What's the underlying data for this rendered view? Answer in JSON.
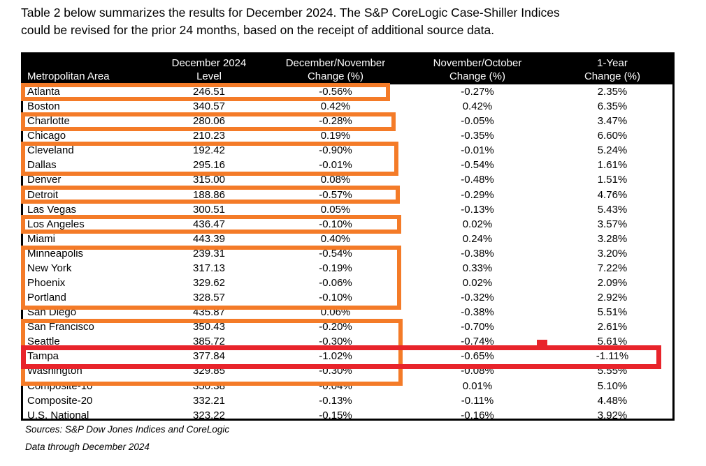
{
  "title": {
    "line1": "Table 2 below summarizes the results for December 2024. The S&P CoreLogic Case-Shiller Indices",
    "line2": "could be revised for the prior 24 months, based on the receipt of additional source data."
  },
  "table": {
    "columns": [
      {
        "line1": "",
        "line2": "Metropolitan Area"
      },
      {
        "line1": "December 2024",
        "line2": "Level"
      },
      {
        "line1": "December/November",
        "line2": "Change (%)"
      },
      {
        "line1": "November/October",
        "line2": "Change (%)"
      },
      {
        "line1": "1-Year",
        "line2": "Change (%)"
      }
    ],
    "rows": [
      {
        "area": "Atlanta",
        "level": "246.51",
        "dec_nov": "-0.56%",
        "nov_oct": "-0.27%",
        "one_year": "2.35%"
      },
      {
        "area": "Boston",
        "level": "340.57",
        "dec_nov": "0.42%",
        "nov_oct": "0.42%",
        "one_year": "6.35%"
      },
      {
        "area": "Charlotte",
        "level": "280.06",
        "dec_nov": "-0.28%",
        "nov_oct": "-0.05%",
        "one_year": "3.47%"
      },
      {
        "area": "Chicago",
        "level": "210.23",
        "dec_nov": "0.19%",
        "nov_oct": "-0.35%",
        "one_year": "6.60%"
      },
      {
        "area": "Cleveland",
        "level": "192.42",
        "dec_nov": "-0.90%",
        "nov_oct": "-0.01%",
        "one_year": "5.24%"
      },
      {
        "area": "Dallas",
        "level": "295.16",
        "dec_nov": "-0.01%",
        "nov_oct": "-0.54%",
        "one_year": "1.61%"
      },
      {
        "area": "Denver",
        "level": "315.00",
        "dec_nov": "0.08%",
        "nov_oct": "-0.48%",
        "one_year": "1.51%"
      },
      {
        "area": "Detroit",
        "level": "188.86",
        "dec_nov": "-0.57%",
        "nov_oct": "-0.29%",
        "one_year": "4.76%"
      },
      {
        "area": "Las Vegas",
        "level": "300.51",
        "dec_nov": "0.05%",
        "nov_oct": "-0.13%",
        "one_year": "5.43%"
      },
      {
        "area": "Los Angeles",
        "level": "436.47",
        "dec_nov": "-0.10%",
        "nov_oct": "0.02%",
        "one_year": "3.57%"
      },
      {
        "area": "Miami",
        "level": "443.39",
        "dec_nov": "0.40%",
        "nov_oct": "0.24%",
        "one_year": "3.28%"
      },
      {
        "area": "Minneapolis",
        "level": "239.31",
        "dec_nov": "-0.54%",
        "nov_oct": "-0.38%",
        "one_year": "3.20%"
      },
      {
        "area": "New York",
        "level": "317.13",
        "dec_nov": "-0.19%",
        "nov_oct": "0.33%",
        "one_year": "7.22%"
      },
      {
        "area": "Phoenix",
        "level": "329.62",
        "dec_nov": "-0.06%",
        "nov_oct": "0.02%",
        "one_year": "2.09%"
      },
      {
        "area": "Portland",
        "level": "328.57",
        "dec_nov": "-0.10%",
        "nov_oct": "-0.32%",
        "one_year": "2.92%"
      },
      {
        "area": "San Diego",
        "level": "435.87",
        "dec_nov": "0.06%",
        "nov_oct": "-0.38%",
        "one_year": "5.51%"
      },
      {
        "area": "San Francisco",
        "level": "350.43",
        "dec_nov": "-0.20%",
        "nov_oct": "-0.70%",
        "one_year": "2.61%"
      },
      {
        "area": "Seattle",
        "level": "385.72",
        "dec_nov": "-0.30%",
        "nov_oct": "-0.74%",
        "one_year": "5.61%"
      },
      {
        "area": "Tampa",
        "level": "377.84",
        "dec_nov": "-1.02%",
        "nov_oct": "-0.65%",
        "one_year": "-1.11%"
      },
      {
        "area": "Washington",
        "level": "329.85",
        "dec_nov": "-0.30%",
        "nov_oct": "-0.08%",
        "one_year": "5.55%"
      },
      {
        "area": "Composite-10",
        "level": "350.38",
        "dec_nov": "-0.04%",
        "nov_oct": "0.01%",
        "one_year": "5.10%"
      },
      {
        "area": "Composite-20",
        "level": "332.21",
        "dec_nov": "-0.13%",
        "nov_oct": "-0.11%",
        "one_year": "4.48%"
      },
      {
        "area": "U.S. National",
        "level": "323.22",
        "dec_nov": "-0.15%",
        "nov_oct": "-0.16%",
        "one_year": "3.92%"
      }
    ]
  },
  "annotations": {
    "colors": {
      "orange": "#F47B28",
      "red": "#E8242B"
    },
    "orange_boxes": [
      {
        "rows": [
          "Atlanta"
        ]
      },
      {
        "rows": [
          "Charlotte"
        ]
      },
      {
        "rows": [
          "Cleveland",
          "Dallas"
        ]
      },
      {
        "rows": [
          "Detroit"
        ]
      },
      {
        "rows": [
          "Los Angeles"
        ]
      },
      {
        "rows": [
          "Minneapolis",
          "New York",
          "Phoenix",
          "Portland"
        ]
      },
      {
        "rows": [
          "San Francisco",
          "Seattle",
          "Tampa",
          "Washington"
        ]
      }
    ],
    "red_box": {
      "rows": [
        "Tampa"
      ],
      "full_width": true,
      "has_top_notch": true
    }
  },
  "footer": {
    "sources": "Sources: S&P Dow Jones Indices and CoreLogic",
    "data_through": "Data through December 2024"
  }
}
